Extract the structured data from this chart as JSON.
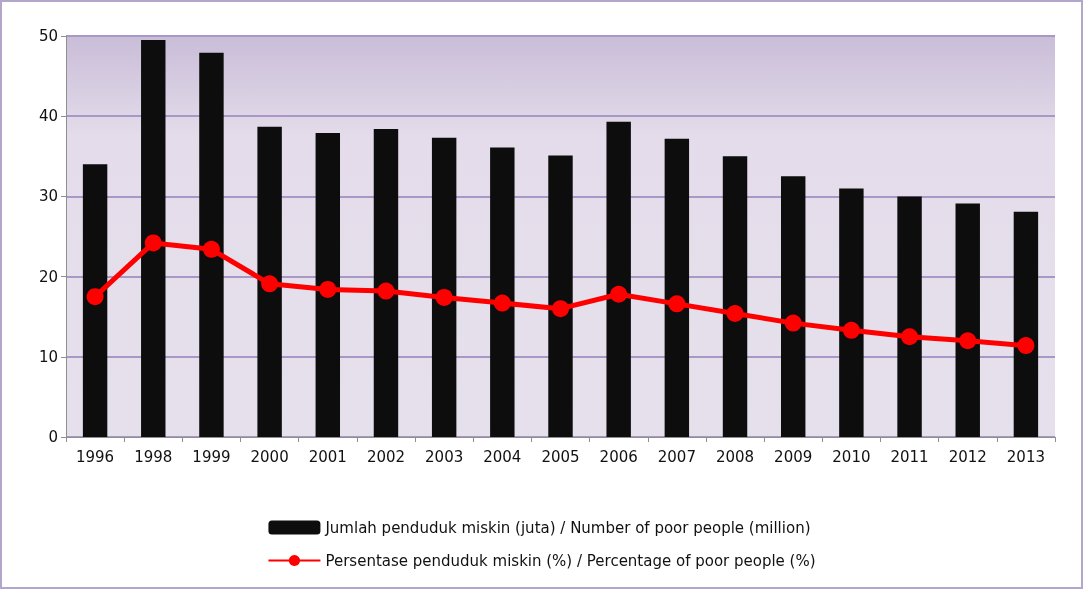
{
  "chart_data": {
    "type": "bar",
    "categories": [
      "1996",
      "1998",
      "1999",
      "2000",
      "2001",
      "2002",
      "2003",
      "2004",
      "2005",
      "2006",
      "2007",
      "2008",
      "2009",
      "2010",
      "2011",
      "2012",
      "2013"
    ],
    "series": [
      {
        "name": "Jumlah penduduk miskin (juta) / Number of poor people (million)",
        "color": "#0d0d0d",
        "values": [
          34.0,
          49.5,
          47.9,
          38.7,
          37.9,
          38.4,
          37.3,
          36.1,
          35.1,
          39.3,
          37.2,
          35.0,
          32.5,
          31.0,
          30.0,
          29.1,
          28.1
        ]
      },
      {
        "name": "Persentase penduduk miskin (%) / Percentage of poor people (%)",
        "type": "line",
        "color": "#ff0000",
        "values": [
          17.5,
          24.2,
          23.4,
          19.1,
          18.4,
          18.2,
          17.4,
          16.7,
          16.0,
          17.8,
          16.6,
          15.4,
          14.2,
          13.3,
          12.5,
          12.0,
          11.4
        ]
      }
    ],
    "ylim": [
      0,
      50
    ],
    "yticks": [
      0,
      10,
      20,
      30,
      40,
      50
    ],
    "grid": "y",
    "legend": "bottom",
    "marker": "circle",
    "line_style": "solid"
  }
}
